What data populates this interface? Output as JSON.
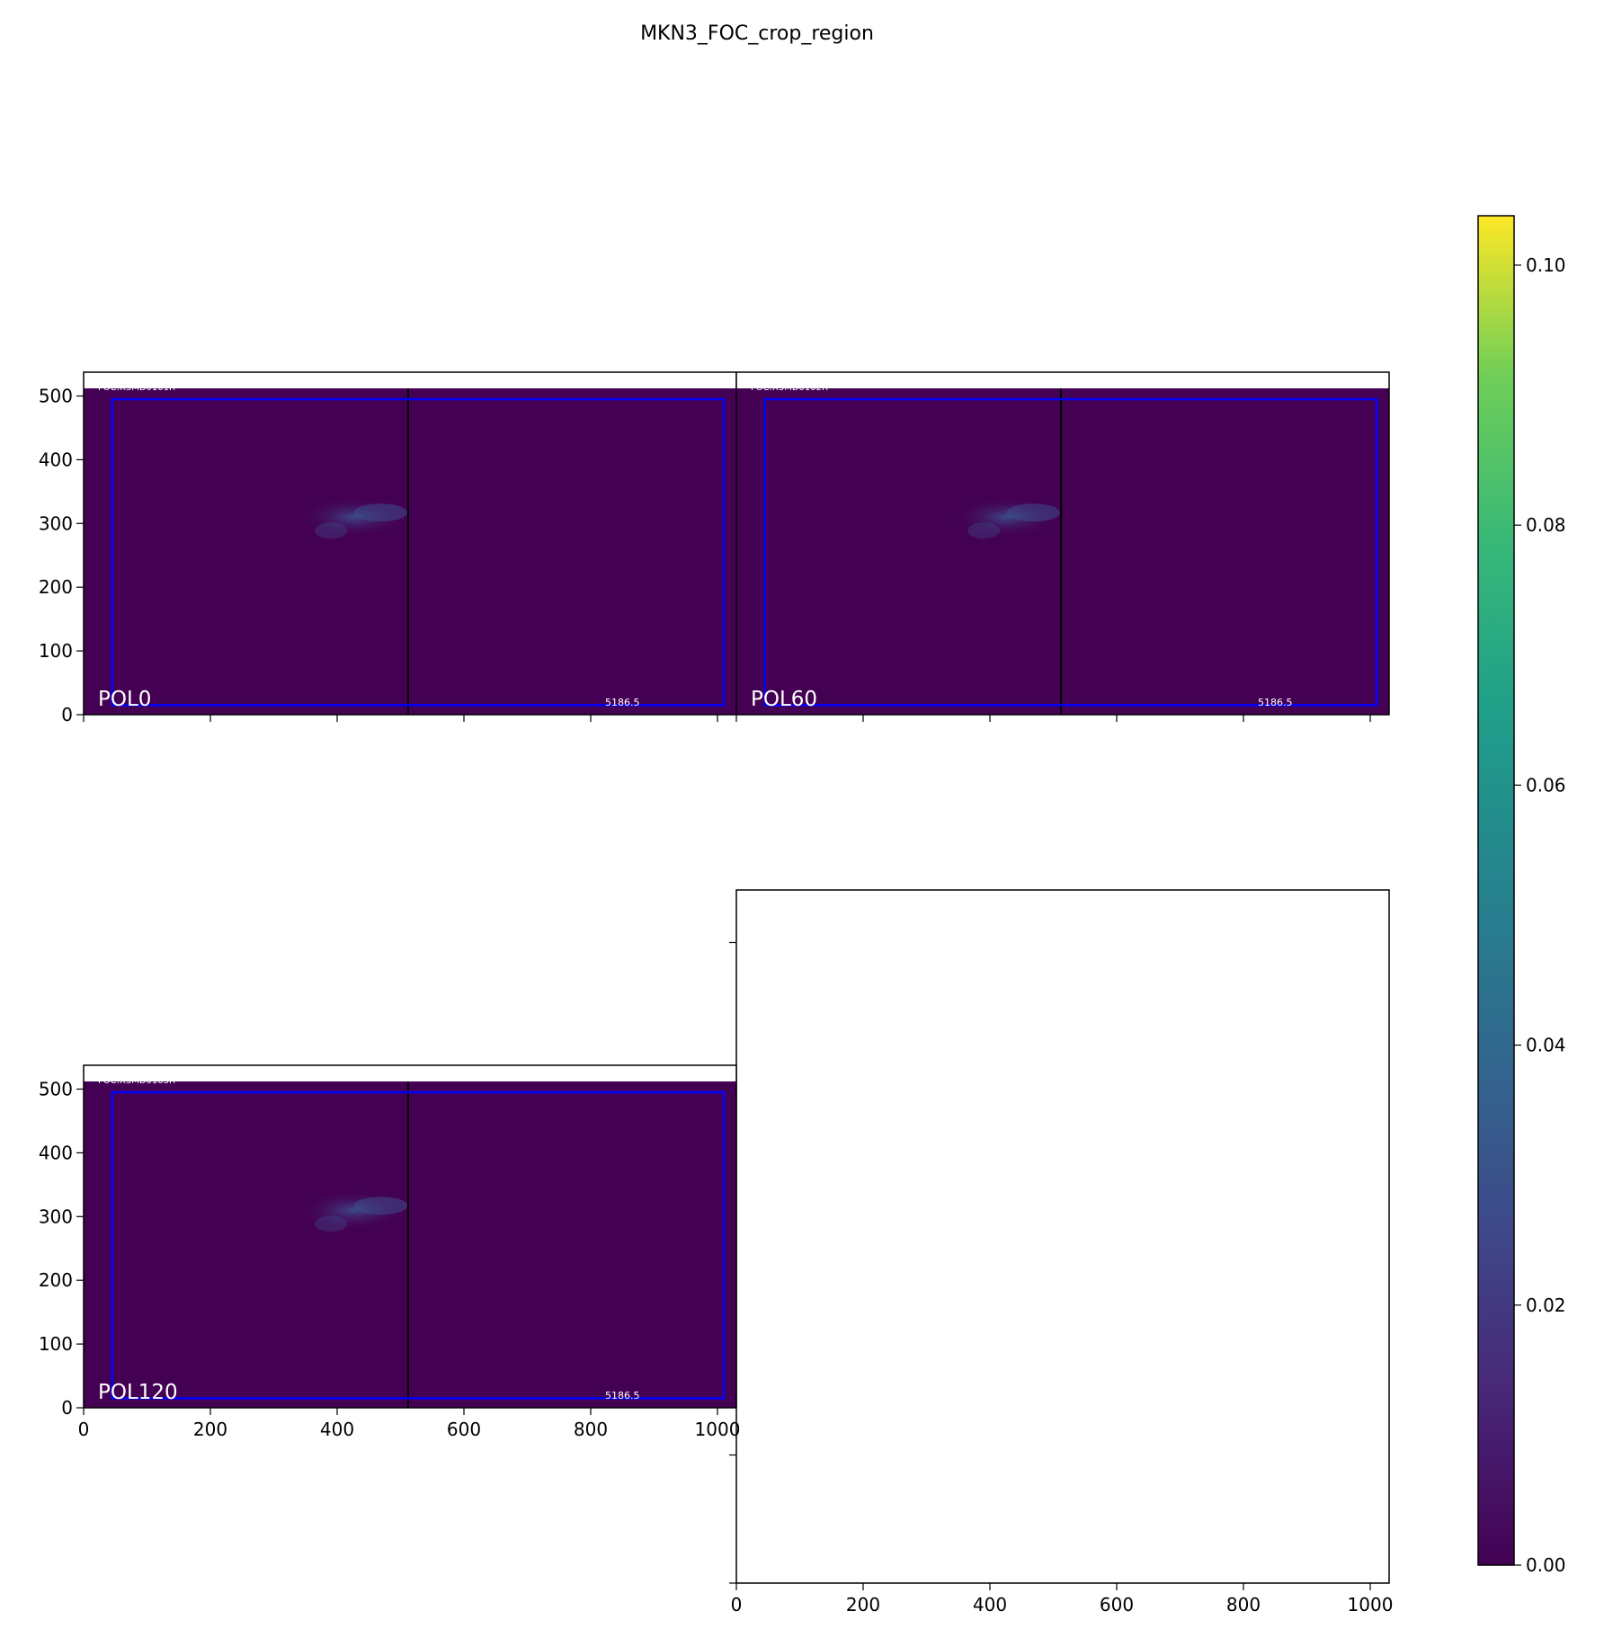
{
  "chart_data": {
    "type": "heatmap",
    "title": "MKN3_FOC_crop_region",
    "colormap": "viridis",
    "colorbar": {
      "range": [
        0.0,
        0.1038
      ],
      "ticks": [
        "0.00",
        "0.02",
        "0.04",
        "0.06",
        "0.08",
        "0.10"
      ]
    },
    "panels": [
      {
        "label": "POL0",
        "header": "FOC:X3MD0101R",
        "value_label": "5186.5",
        "xlim": [
          0,
          1024
        ],
        "ylim": [
          0,
          535
        ],
        "x_ticks_labeled": false,
        "x_ticks": [
          "0",
          "200",
          "400",
          "600",
          "800",
          "1000"
        ],
        "y_ticks": [
          "0",
          "100",
          "200",
          "300",
          "400",
          "500"
        ],
        "split_x": 512,
        "crop_box": {
          "x": [
            45,
            1010
          ],
          "y": [
            15,
            495
          ]
        },
        "source": {
          "x": 440,
          "y": 310
        }
      },
      {
        "label": "POL60",
        "header": "FOC:X3MD0102R",
        "value_label": "5186.5",
        "xlim": [
          0,
          1024
        ],
        "ylim": [
          0,
          535
        ],
        "x_ticks_labeled": false,
        "x_ticks": [
          "0",
          "200",
          "400",
          "600",
          "800",
          "1000"
        ],
        "y_ticks": [],
        "split_x": 512,
        "crop_box": {
          "x": [
            45,
            1010
          ],
          "y": [
            15,
            495
          ]
        },
        "source": {
          "x": 440,
          "y": 310
        }
      },
      {
        "label": "POL120",
        "header": "FOC:X3MD0103R",
        "value_label": "5186.5",
        "xlim": [
          0,
          1024
        ],
        "ylim": [
          0,
          535
        ],
        "x_ticks_labeled": true,
        "x_ticks": [
          "0",
          "200",
          "400",
          "600",
          "800",
          "1000"
        ],
        "y_ticks": [
          "0",
          "100",
          "200",
          "300",
          "400",
          "500"
        ],
        "split_x": 512,
        "crop_box": {
          "x": [
            45,
            1010
          ],
          "y": [
            15,
            495
          ]
        },
        "source": {
          "x": 440,
          "y": 310
        }
      },
      {
        "label": "",
        "empty": true,
        "x_ticks": [
          "0",
          "200",
          "400",
          "600",
          "800",
          "1000"
        ]
      }
    ],
    "colors": {
      "background": "#440154",
      "crop_box": "#0000ff",
      "max": "#fde725"
    }
  }
}
